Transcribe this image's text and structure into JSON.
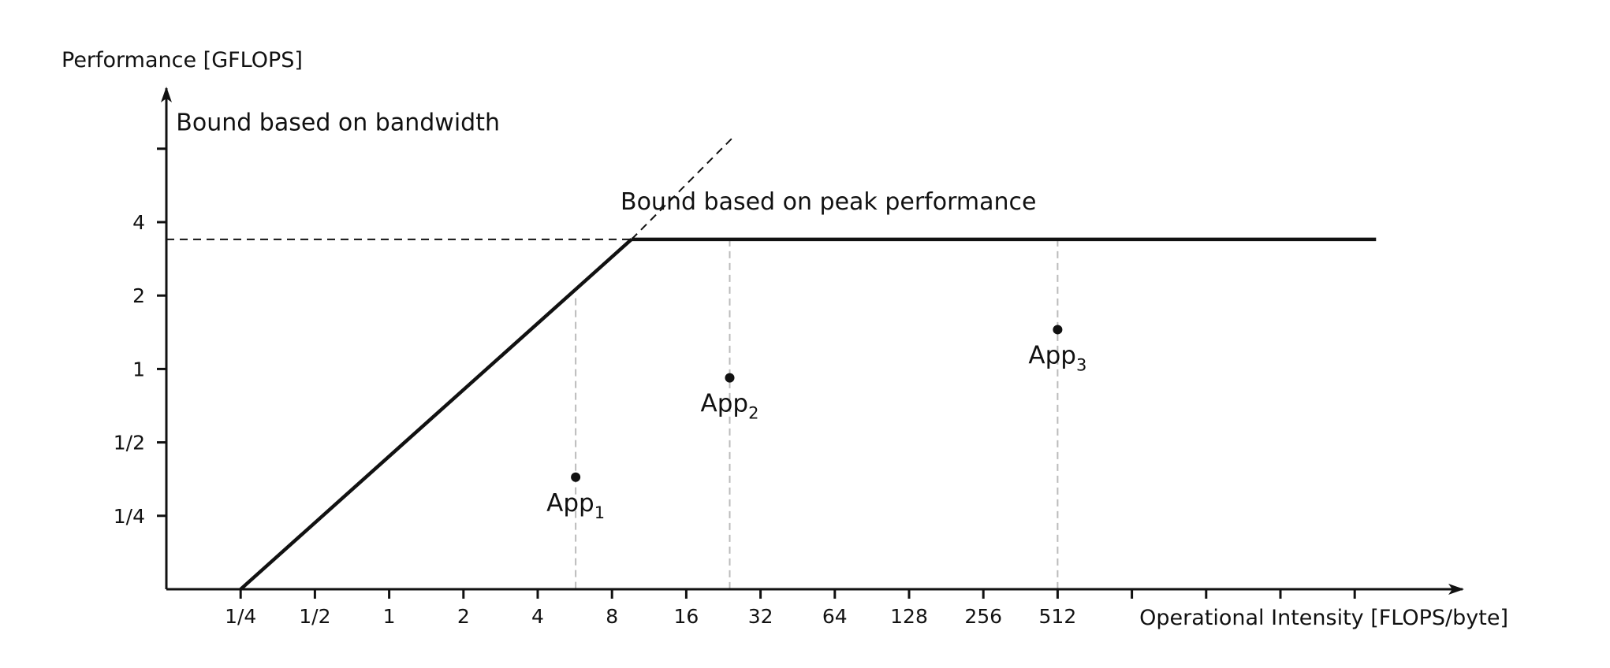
{
  "chart_data": {
    "type": "line",
    "xscale": "log2",
    "yscale": "log2",
    "ylabel": "Performance [GFLOPS]",
    "xlabel": "Operational Intensity [FLOPS/byte]",
    "x_ticks": [
      {
        "value": 0.25,
        "label": "1/4"
      },
      {
        "value": 0.5,
        "label": "1/2"
      },
      {
        "value": 1,
        "label": "1"
      },
      {
        "value": 2,
        "label": "2"
      },
      {
        "value": 4,
        "label": "4"
      },
      {
        "value": 8,
        "label": "8"
      },
      {
        "value": 16,
        "label": "16"
      },
      {
        "value": 32,
        "label": "32"
      },
      {
        "value": 64,
        "label": "64"
      },
      {
        "value": 128,
        "label": "128"
      },
      {
        "value": 256,
        "label": "256"
      },
      {
        "value": 512,
        "label": "512"
      },
      {
        "value": 1024,
        "label": ""
      },
      {
        "value": 2048,
        "label": ""
      },
      {
        "value": 4096,
        "label": ""
      },
      {
        "value": 8192,
        "label": ""
      }
    ],
    "y_ticks": [
      {
        "value": 0.25,
        "label": "1/4"
      },
      {
        "value": 0.5,
        "label": "1/2"
      },
      {
        "value": 1,
        "label": "1"
      },
      {
        "value": 2,
        "label": "2"
      },
      {
        "value": 4,
        "label": "4"
      },
      {
        "value": 8,
        "label": ""
      }
    ],
    "xlim": [
      0.125,
      16384
    ],
    "ylim": [
      0.125,
      16
    ],
    "roofline": {
      "bandwidth_bound": {
        "x": [
          0.25,
          9.6
        ],
        "y": [
          0.125,
          3.4
        ]
      },
      "peak_bound": {
        "x": [
          9.6,
          10000
        ],
        "y": [
          3.4,
          3.4
        ]
      },
      "bandwidth_extension": {
        "x": [
          9.6,
          25
        ],
        "y": [
          3.4,
          9
        ]
      },
      "peak_extension": {
        "x": [
          0.125,
          9.6
        ],
        "y": [
          3.4,
          3.4
        ]
      }
    },
    "annotations": [
      {
        "text": "Bound based on bandwidth",
        "x": 0.62,
        "y": 9.5
      },
      {
        "text": "Bound based on peak performance",
        "x": 420,
        "y": 4.5
      }
    ],
    "points": [
      {
        "name": "App",
        "subscript": "1",
        "x": 5.7,
        "y": 0.36,
        "y_ceiling": 1.95
      },
      {
        "name": "App",
        "subscript": "2",
        "x": 24,
        "y": 0.92,
        "y_ceiling": 3.4
      },
      {
        "name": "App",
        "subscript": "3",
        "x": 512,
        "y": 1.45,
        "y_ceiling": 3.4
      }
    ]
  },
  "colors": {
    "axis": "#111111",
    "roofline": "#111111",
    "guide": "#bbbbbb",
    "point": "#111111"
  }
}
